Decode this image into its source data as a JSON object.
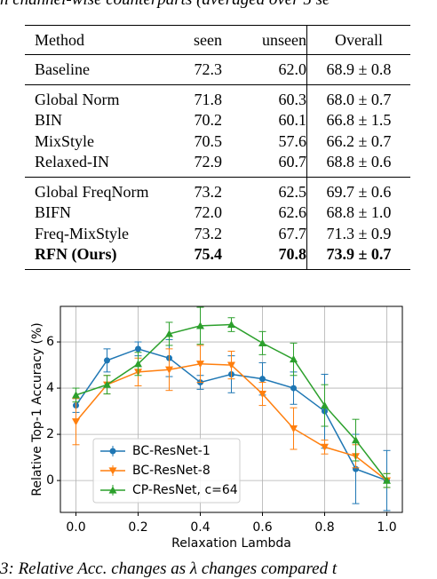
{
  "caption_top": "n channel-wise counterparts (averaged over 5 se",
  "table": {
    "header": [
      "Method",
      "seen",
      "unseen",
      "Overall"
    ],
    "groups": [
      [
        [
          "Baseline",
          "72.3",
          "62.0",
          "68.9 ± 0.8"
        ]
      ],
      [
        [
          "Global Norm",
          "71.8",
          "60.3",
          "68.0 ± 0.7"
        ],
        [
          "BIN",
          "70.2",
          "60.1",
          "66.8 ± 1.5"
        ],
        [
          "MixStyle",
          "70.5",
          "57.6",
          "66.2 ± 0.7"
        ],
        [
          "Relaxed-IN",
          "72.9",
          "60.7",
          "68.8 ± 0.6"
        ]
      ],
      [
        [
          "Global FreqNorm",
          "73.2",
          "62.5",
          "69.7 ± 0.6"
        ],
        [
          "BIFN",
          "72.0",
          "62.6",
          "68.8 ± 1.0"
        ],
        [
          "Freq-MixStyle",
          "73.2",
          "67.7",
          "71.3 ± 0.9"
        ],
        [
          "RFN (Ours)",
          "75.4",
          "70.8",
          "73.9 ± 0.7"
        ]
      ]
    ]
  },
  "chart_data": {
    "type": "errorbar-line",
    "xlabel": "Relaxation Lambda",
    "ylabel": "Relative Top-1 Accuracy (%)",
    "x": [
      0,
      0.1,
      0.2,
      0.3,
      0.4,
      0.5,
      0.6,
      0.7,
      0.8,
      0.9,
      1
    ],
    "xlim": [
      -0.05,
      1.05
    ],
    "xticks": [
      {
        "value": 0,
        "label": "0.0"
      },
      0.2,
      0.4,
      0.6,
      0.8,
      {
        "value": 1,
        "label": "1.0"
      }
    ],
    "ylim": [
      -1.38,
      7.54
    ],
    "yticks": [
      0,
      2,
      4,
      6
    ],
    "grid": true,
    "legend": "lower left",
    "series": [
      {
        "name": "BC-ResNet-1",
        "color": "#1f77b4",
        "marker": "circle",
        "values": [
          3.25,
          5.2,
          5.7,
          5.3,
          4.25,
          4.6,
          4.4,
          4.0,
          3.0,
          0.5,
          0
        ],
        "errors": [
          0.3,
          0.5,
          0.3,
          0.8,
          0.3,
          0.8,
          0.7,
          0.7,
          1.6,
          1.5,
          1.3
        ]
      },
      {
        "name": "BC-ResNet-8",
        "color": "#ff7f0e",
        "marker": "triangle-down",
        "values": [
          2.55,
          4.15,
          4.7,
          4.8,
          5.05,
          5.0,
          3.75,
          2.25,
          1.45,
          1.05,
          0
        ],
        "errors": [
          1.0,
          0.4,
          0.6,
          0.9,
          0.8,
          0.6,
          0.5,
          0.9,
          0.3,
          0.5,
          0.3
        ]
      },
      {
        "name": "CP-ResNet, c=64",
        "color": "#2ca02c",
        "marker": "triangle-up",
        "values": [
          3.7,
          4.15,
          5.05,
          6.35,
          6.7,
          6.75,
          5.95,
          5.25,
          3.25,
          1.75,
          0
        ],
        "errors": [
          0.3,
          0.4,
          0.5,
          0.5,
          0.8,
          0.3,
          0.5,
          0.7,
          0.9,
          0.9,
          0.3
        ]
      }
    ]
  },
  "caption_bottom": "3: Relative Acc. changes as λ changes compared t"
}
